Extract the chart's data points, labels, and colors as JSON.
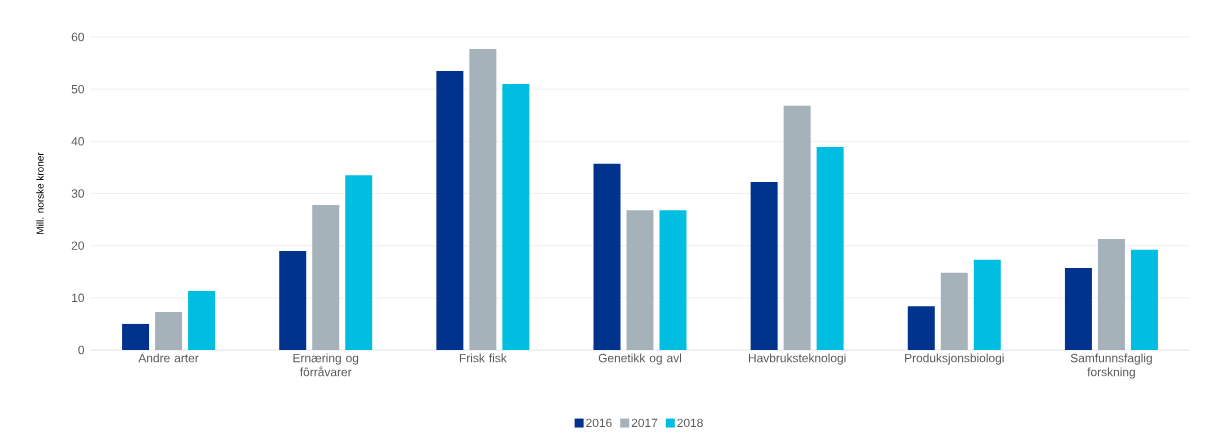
{
  "chart_data": {
    "type": "bar",
    "ylabel": "Mill. norske kroner",
    "categories": [
      "Andre arter",
      "Ernæring og fôrråvarer",
      "Frisk fisk",
      "Genetikk og avl",
      "Havbruksteknologi",
      "Produksjonsbiologi",
      "Samfunnsfaglig forskning"
    ],
    "series": [
      {
        "name": "2016",
        "color": "#00338d",
        "values": [
          5.0,
          19.0,
          53.5,
          35.7,
          32.2,
          8.4,
          15.7
        ]
      },
      {
        "name": "2017",
        "color": "#a5b2ba",
        "values": [
          7.3,
          27.8,
          57.7,
          26.8,
          46.8,
          14.8,
          21.3
        ]
      },
      {
        "name": "2018",
        "color": "#00bde2",
        "values": [
          11.3,
          33.5,
          51.0,
          26.8,
          38.9,
          17.3,
          19.2
        ]
      }
    ],
    "ylim": [
      0,
      60
    ],
    "yticks": [
      0,
      10,
      20,
      30,
      40,
      50,
      60
    ],
    "grid": "y",
    "legend": "bottom"
  }
}
